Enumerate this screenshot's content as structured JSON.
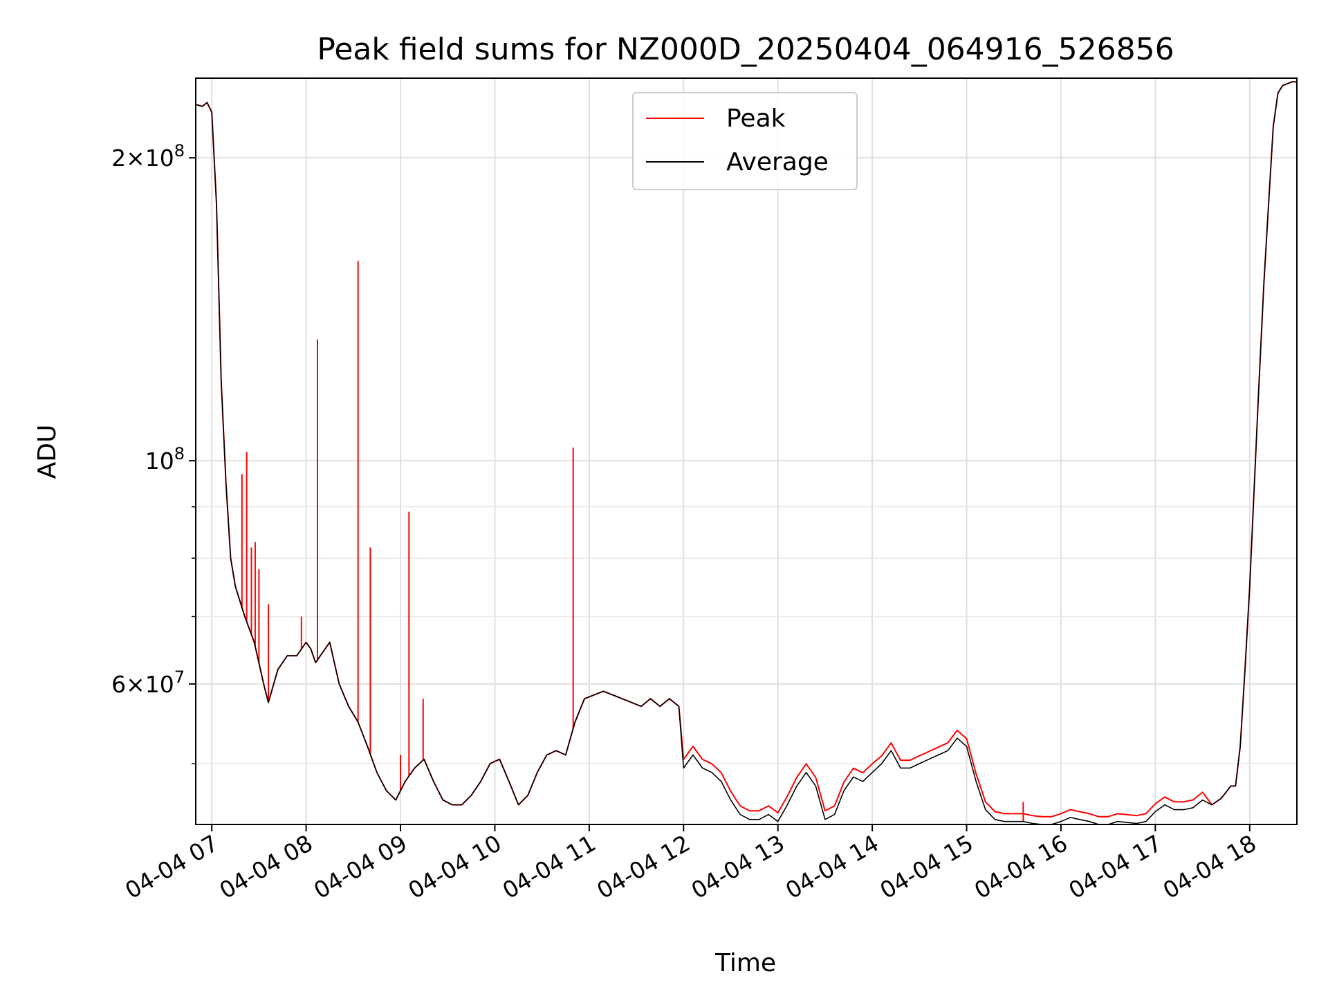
{
  "chart_data": {
    "type": "line",
    "title": "Peak field sums for NZ000D_20250404_064916_526856",
    "xlabel": "Time",
    "ylabel": "ADU",
    "yscale": "log",
    "ylim": [
      43500000,
      240000000
    ],
    "xlim_hours": [
      6.83,
      18.5
    ],
    "grid": true,
    "legend_position": "top-center",
    "x_ticks": [
      "04-04 07",
      "04-04 08",
      "04-04 09",
      "04-04 10",
      "04-04 11",
      "04-04 12",
      "04-04 13",
      "04-04 14",
      "04-04 15",
      "04-04 16",
      "04-04 17",
      "04-04 18"
    ],
    "y_ticks": [
      {
        "value": 200000000,
        "base": "2×10",
        "exp": "8"
      },
      {
        "value": 100000000,
        "base": "10",
        "exp": "8"
      },
      {
        "value": 60000000,
        "base": "6×10",
        "exp": "7"
      }
    ],
    "series": [
      {
        "name": "Average",
        "color": "#000000",
        "x": [
          6.83,
          6.9,
          6.95,
          7.0,
          7.05,
          7.1,
          7.15,
          7.2,
          7.25,
          7.35,
          7.45,
          7.55,
          7.6,
          7.7,
          7.8,
          7.9,
          8.0,
          8.05,
          8.1,
          8.15,
          8.25,
          8.35,
          8.45,
          8.55,
          8.65,
          8.75,
          8.85,
          8.95,
          9.05,
          9.15,
          9.25,
          9.35,
          9.45,
          9.55,
          9.65,
          9.75,
          9.85,
          9.95,
          10.05,
          10.15,
          10.25,
          10.35,
          10.45,
          10.55,
          10.65,
          10.75,
          10.85,
          10.95,
          11.05,
          11.15,
          11.25,
          11.35,
          11.45,
          11.55,
          11.65,
          11.75,
          11.85,
          11.95,
          12.0,
          12.1,
          12.2,
          12.3,
          12.4,
          12.5,
          12.6,
          12.7,
          12.8,
          12.9,
          13.0,
          13.1,
          13.2,
          13.3,
          13.4,
          13.5,
          13.6,
          13.7,
          13.8,
          13.9,
          14.0,
          14.1,
          14.2,
          14.3,
          14.4,
          14.5,
          14.6,
          14.7,
          14.8,
          14.9,
          15.0,
          15.1,
          15.2,
          15.3,
          15.4,
          15.5,
          15.6,
          15.7,
          15.8,
          15.9,
          16.0,
          16.1,
          16.2,
          16.3,
          16.4,
          16.5,
          16.6,
          16.7,
          16.8,
          16.9,
          17.0,
          17.1,
          17.2,
          17.3,
          17.4,
          17.5,
          17.6,
          17.7,
          17.8,
          17.85,
          17.9,
          17.95,
          18.0,
          18.05,
          18.1,
          18.15,
          18.2,
          18.25,
          18.3,
          18.35,
          18.4,
          18.45,
          18.5
        ],
        "values": [
          226000000,
          225000000,
          227000000,
          222000000,
          180000000,
          120000000,
          95000000,
          80000000,
          75000000,
          70000000,
          66000000,
          60000000,
          57500000,
          62000000,
          64000000,
          64000000,
          66000000,
          65000000,
          63000000,
          64000000,
          66000000,
          60000000,
          57000000,
          55000000,
          52000000,
          49000000,
          47000000,
          46000000,
          48000000,
          49500000,
          50500000,
          48000000,
          46000000,
          45500000,
          45500000,
          46500000,
          48000000,
          50000000,
          50500000,
          48000000,
          45500000,
          46500000,
          49000000,
          51000000,
          51500000,
          51000000,
          55000000,
          58000000,
          58500000,
          59000000,
          58500000,
          58000000,
          57500000,
          57000000,
          58000000,
          57000000,
          58000000,
          57000000,
          49500000,
          51000000,
          49500000,
          49000000,
          48000000,
          46000000,
          44500000,
          44000000,
          44000000,
          44500000,
          43800000,
          45500000,
          47500000,
          49000000,
          47500000,
          44000000,
          44500000,
          47000000,
          48500000,
          48000000,
          49000000,
          50000000,
          51500000,
          49500000,
          49500000,
          50000000,
          50500000,
          51000000,
          51500000,
          53000000,
          52000000,
          48000000,
          45000000,
          44000000,
          43800000,
          43800000,
          43800000,
          43600000,
          43500000,
          43500000,
          43800000,
          44200000,
          44000000,
          43800000,
          43500000,
          43500000,
          43800000,
          43700000,
          43600000,
          43800000,
          44800000,
          45500000,
          45000000,
          45000000,
          45200000,
          46000000,
          45500000,
          46200000,
          47500000,
          47500000,
          52000000,
          62000000,
          75000000,
          95000000,
          120000000,
          150000000,
          180000000,
          215000000,
          232000000,
          236000000,
          237000000,
          238000000,
          238000000
        ]
      }
    ],
    "peak_offset_segments": [
      {
        "x_range": [
          12.0,
          14.0
        ],
        "ratio": 1.02
      },
      {
        "x_range": [
          14.0,
          17.5
        ],
        "ratio": 1.018
      }
    ],
    "peak_spikes": [
      {
        "x": 7.32,
        "value": 97000000
      },
      {
        "x": 7.37,
        "value": 102000000
      },
      {
        "x": 7.42,
        "value": 82000000
      },
      {
        "x": 7.46,
        "value": 83000000
      },
      {
        "x": 7.5,
        "value": 78000000
      },
      {
        "x": 7.6,
        "value": 72000000
      },
      {
        "x": 7.95,
        "value": 70000000
      },
      {
        "x": 8.12,
        "value": 132000000
      },
      {
        "x": 8.55,
        "value": 158000000
      },
      {
        "x": 8.68,
        "value": 82000000
      },
      {
        "x": 9.0,
        "value": 51000000
      },
      {
        "x": 9.09,
        "value": 89000000
      },
      {
        "x": 9.24,
        "value": 58000000
      },
      {
        "x": 10.83,
        "value": 103000000
      },
      {
        "x": 15.6,
        "value": 45800000
      }
    ]
  },
  "legend": {
    "peak_label": "Peak",
    "average_label": "Average",
    "peak_color": "#ff0000",
    "average_color": "#000000"
  }
}
